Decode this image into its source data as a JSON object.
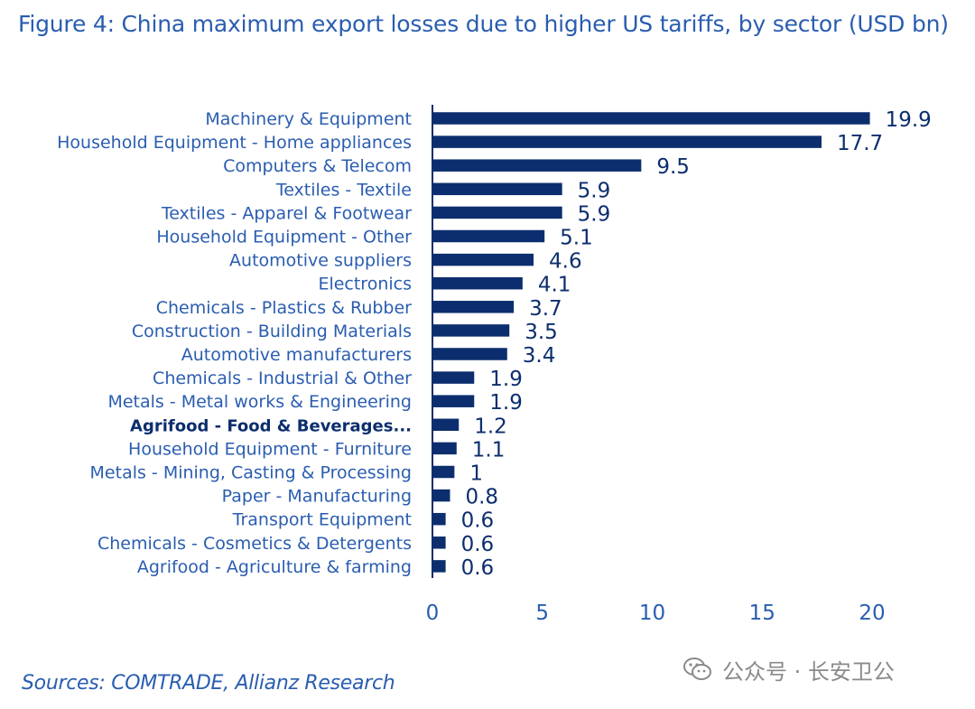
{
  "figure": {
    "title": "Figure 4: China maximum export losses due to higher US tariffs, by sector (USD bn)",
    "source": "Sources: COMTRADE, Allianz Research",
    "watermark": "公众号 · 长安卫公"
  },
  "colors": {
    "bar": "#0c2e6e",
    "label": "#2a5db0",
    "value": "#0c2e6e",
    "bold_label": "#0c2e6e",
    "axis": "#0c2e6e"
  },
  "chart_data": {
    "type": "bar",
    "orientation": "horizontal",
    "title": "Figure 4: China maximum export losses due to higher US tariffs, by sector (USD bn)",
    "xlabel": "",
    "ylabel": "",
    "xlim": [
      0,
      20
    ],
    "xticks": [
      0,
      5,
      10,
      15,
      20
    ],
    "grid": false,
    "legend": "none",
    "highlighted_category": "Agrifood - Food & Beverages...",
    "categories": [
      "Machinery & Equipment",
      "Household Equipment - Home appliances",
      "Computers & Telecom",
      "Textiles - Textile",
      "Textiles - Apparel & Footwear",
      "Household Equipment - Other",
      "Automotive suppliers",
      "Electronics",
      "Chemicals - Plastics & Rubber",
      "Construction - Building Materials",
      "Automotive manufacturers",
      "Chemicals - Industrial & Other",
      "Metals - Metal works & Engineering",
      "Agrifood - Food & Beverages...",
      "Household Equipment - Furniture",
      "Metals - Mining, Casting & Processing",
      "Paper - Manufacturing",
      "Transport Equipment",
      "Chemicals - Cosmetics & Detergents",
      "Agrifood - Agriculture & farming"
    ],
    "values": [
      19.9,
      17.7,
      9.5,
      5.9,
      5.9,
      5.1,
      4.6,
      4.1,
      3.7,
      3.5,
      3.4,
      1.9,
      1.9,
      1.2,
      1.1,
      1,
      0.8,
      0.6,
      0.6,
      0.6
    ]
  }
}
